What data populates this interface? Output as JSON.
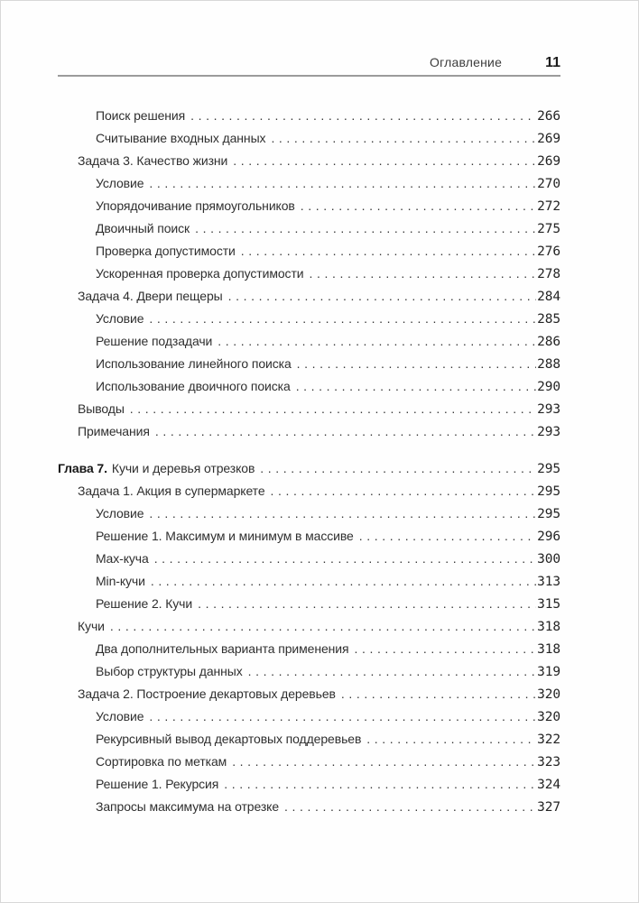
{
  "header": {
    "title": "Оглавление",
    "page_number": "11"
  },
  "toc_entries": [
    {
      "level": 2,
      "label": "Поиск решения",
      "page": "266"
    },
    {
      "level": 2,
      "label": "Считывание входных данных",
      "page": "269"
    },
    {
      "level": 1,
      "label": "Задача 3. Качество жизни",
      "page": "269"
    },
    {
      "level": 2,
      "label": "Условие",
      "page": "270"
    },
    {
      "level": 2,
      "label": "Упорядочивание прямоугольников",
      "page": "272"
    },
    {
      "level": 2,
      "label": "Двоичный поиск",
      "page": "275"
    },
    {
      "level": 2,
      "label": "Проверка допустимости",
      "page": "276"
    },
    {
      "level": 2,
      "label": "Ускоренная проверка допустимости",
      "page": "278"
    },
    {
      "level": 1,
      "label": "Задача 4. Двери пещеры",
      "page": "284"
    },
    {
      "level": 2,
      "label": "Условие",
      "page": "285"
    },
    {
      "level": 2,
      "label": "Решение подзадачи",
      "page": "286"
    },
    {
      "level": 2,
      "label": "Использование линейного поиска",
      "page": "288"
    },
    {
      "level": 2,
      "label": "Использование двоичного поиска",
      "page": "290"
    },
    {
      "level": 1,
      "label": "Выводы",
      "page": "293"
    },
    {
      "level": 1,
      "label": "Примечания",
      "page": "293"
    },
    {
      "level": 0,
      "chapter": true,
      "prefix": "Глава 7.",
      "label": "Кучи и деревья отрезков",
      "page": "295"
    },
    {
      "level": 1,
      "label": "Задача 1. Акция в супермаркете",
      "page": "295"
    },
    {
      "level": 2,
      "label": "Условие",
      "page": "295"
    },
    {
      "level": 2,
      "label": "Решение 1. Максимум и минимум в массиве",
      "page": "296"
    },
    {
      "level": 2,
      "label": "Max-куча",
      "page": "300"
    },
    {
      "level": 2,
      "label": "Min-кучи",
      "page": "313"
    },
    {
      "level": 2,
      "label": "Решение 2. Кучи",
      "page": "315"
    },
    {
      "level": 1,
      "label": "Кучи",
      "page": "318"
    },
    {
      "level": 2,
      "label": "Два дополнительных варианта применения",
      "page": "318"
    },
    {
      "level": 2,
      "label": "Выбор структуры данных",
      "page": "319"
    },
    {
      "level": 1,
      "label": "Задача 2. Построение декартовых деревьев",
      "page": "320"
    },
    {
      "level": 2,
      "label": "Условие",
      "page": "320"
    },
    {
      "level": 2,
      "label": "Рекурсивный вывод декартовых поддеревьев",
      "page": "322"
    },
    {
      "level": 2,
      "label": "Сортировка по меткам",
      "page": "323"
    },
    {
      "level": 2,
      "label": "Решение 1. Рекурсия",
      "page": "324"
    },
    {
      "level": 2,
      "label": "Запросы максимума на отрезке",
      "page": "327"
    }
  ]
}
